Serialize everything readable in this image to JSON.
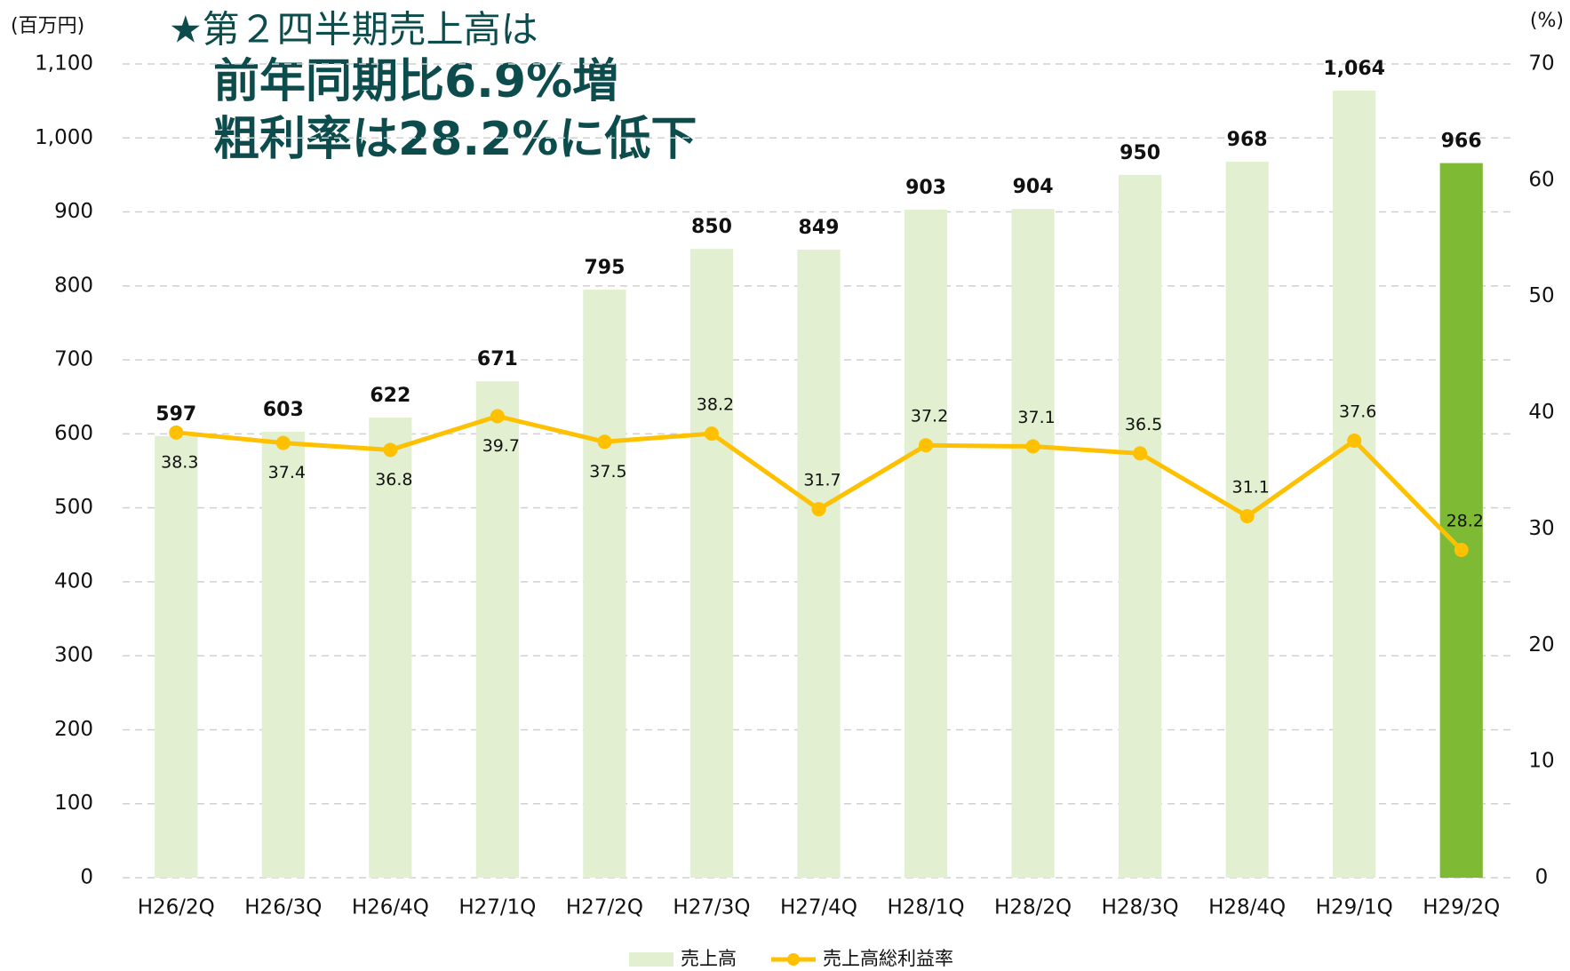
{
  "chart_data": {
    "type": "bar",
    "title": "★第２四半期売上高は",
    "subtitle": [
      "前年同期比6.9%増",
      "粗利率は28.2%に低下"
    ],
    "y_label": "(百万円)",
    "y2_label": "(%)",
    "categories": [
      "H26/2Q",
      "H26/3Q",
      "H26/4Q",
      "H27/1Q",
      "H27/2Q",
      "H27/3Q",
      "H27/4Q",
      "H28/1Q",
      "H28/2Q",
      "H28/3Q",
      "H28/4Q",
      "H29/1Q",
      "H29/2Q"
    ],
    "series": [
      {
        "name": "売上高",
        "type": "bar",
        "color": "#e2efd0",
        "highlight_color": "#7fba35",
        "highlight_index": 12,
        "values": [
          597,
          603,
          622,
          671,
          795,
          850,
          849,
          903,
          904,
          950,
          968,
          1064,
          966
        ],
        "value_labels": [
          "597",
          "603",
          "622",
          "671",
          "795",
          "850",
          "849",
          "903",
          "904",
          "950",
          "968",
          "1,064",
          "966"
        ]
      },
      {
        "name": "売上高総利益率",
        "type": "line",
        "axis": "y2",
        "color": "#ffc000",
        "values": [
          38.3,
          37.4,
          36.8,
          39.7,
          37.5,
          38.2,
          31.7,
          37.2,
          37.1,
          36.5,
          31.1,
          37.6,
          28.2
        ]
      }
    ],
    "ylim": [
      0,
      1100
    ],
    "yticks": [
      0,
      100,
      200,
      300,
      400,
      500,
      600,
      700,
      800,
      900,
      {
        "value": 1000,
        "label": "1,000"
      },
      {
        "value": 1100,
        "label": "1,100"
      }
    ],
    "y2lim": [
      0,
      70
    ],
    "y2ticks": [
      0,
      10,
      20,
      30,
      40,
      50,
      60,
      70
    ],
    "grid": true,
    "legend": "bottom"
  }
}
